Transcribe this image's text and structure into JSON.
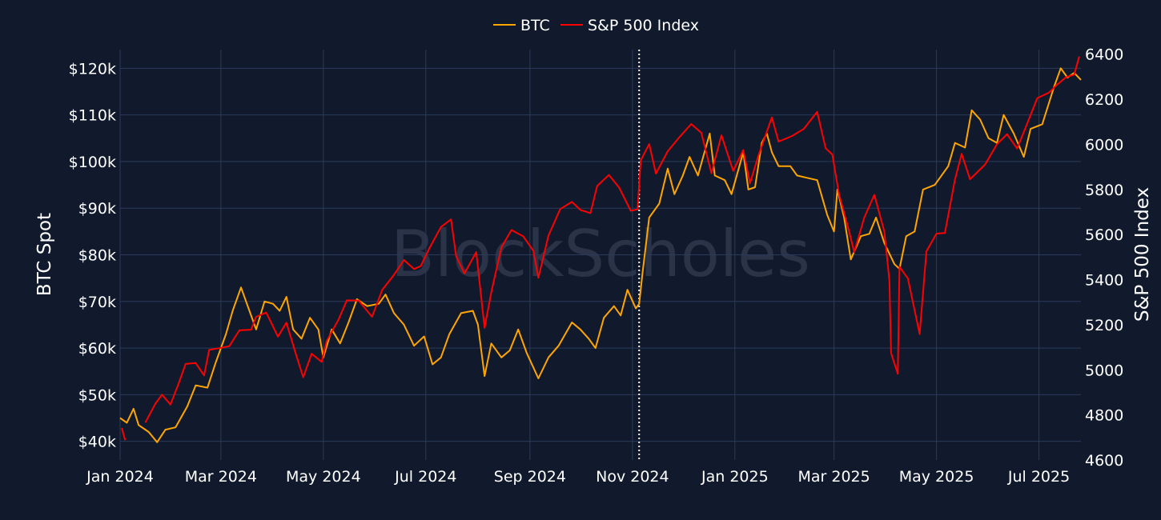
{
  "chart_data": {
    "type": "line",
    "watermark": "BlockScholes",
    "legend": {
      "placement": "top-center"
    },
    "grid": true,
    "x_axis": {
      "range": [
        "2024-01-01",
        "2025-07-26"
      ],
      "ticks": [
        {
          "date": "2024-01-01",
          "label": "Jan 2024"
        },
        {
          "date": "2024-03-01",
          "label": "Mar 2024"
        },
        {
          "date": "2024-05-01",
          "label": "May 2024"
        },
        {
          "date": "2024-07-01",
          "label": "Jul 2024"
        },
        {
          "date": "2024-09-01",
          "label": "Sep 2024"
        },
        {
          "date": "2024-11-01",
          "label": "Nov 2024"
        },
        {
          "date": "2025-01-01",
          "label": "Jan 2025"
        },
        {
          "date": "2025-03-01",
          "label": "Mar 2025"
        },
        {
          "date": "2025-05-01",
          "label": "May 2025"
        },
        {
          "date": "2025-07-01",
          "label": "Jul 2025"
        }
      ]
    },
    "y_left": {
      "title": "BTC Spot",
      "range": [
        36000,
        124000
      ],
      "ticks": [
        {
          "value": 40000,
          "label": "$40k"
        },
        {
          "value": 50000,
          "label": "$50k"
        },
        {
          "value": 60000,
          "label": "$60k"
        },
        {
          "value": 70000,
          "label": "$70k"
        },
        {
          "value": 80000,
          "label": "$80k"
        },
        {
          "value": 90000,
          "label": "$90k"
        },
        {
          "value": 100000,
          "label": "$100k"
        },
        {
          "value": 110000,
          "label": "$110k"
        },
        {
          "value": 120000,
          "label": "$120k"
        }
      ]
    },
    "y_right": {
      "title": "S&P 500 Index",
      "range": [
        4600,
        6420
      ],
      "ticks": [
        {
          "value": 4600,
          "label": "4600"
        },
        {
          "value": 4800,
          "label": "4800"
        },
        {
          "value": 5000,
          "label": "5000"
        },
        {
          "value": 5200,
          "label": "5200"
        },
        {
          "value": 5400,
          "label": "5400"
        },
        {
          "value": 5600,
          "label": "5600"
        },
        {
          "value": 5800,
          "label": "5800"
        },
        {
          "value": 6000,
          "label": "6000"
        },
        {
          "value": 6200,
          "label": "6200"
        },
        {
          "value": 6400,
          "label": "6400"
        }
      ]
    },
    "annotations": [
      {
        "type": "vertical-dotted-line",
        "date": "2024-11-05",
        "color": "#ffffff"
      }
    ],
    "series": [
      {
        "name": "BTC",
        "axis": "left",
        "color": "#ffa500",
        "points": [
          [
            "2024-01-01",
            45000
          ],
          [
            "2024-01-05",
            44000
          ],
          [
            "2024-01-09",
            47000
          ],
          [
            "2024-01-12",
            43500
          ],
          [
            "2024-01-18",
            42000
          ],
          [
            "2024-01-23",
            39800
          ],
          [
            "2024-01-28",
            42500
          ],
          [
            "2024-02-03",
            43000
          ],
          [
            "2024-02-10",
            47500
          ],
          [
            "2024-02-15",
            52000
          ],
          [
            "2024-02-22",
            51500
          ],
          [
            "2024-02-27",
            57000
          ],
          [
            "2024-03-04",
            63000
          ],
          [
            "2024-03-08",
            68000
          ],
          [
            "2024-03-13",
            73000
          ],
          [
            "2024-03-18",
            68000
          ],
          [
            "2024-03-22",
            64000
          ],
          [
            "2024-03-27",
            70000
          ],
          [
            "2024-04-01",
            69500
          ],
          [
            "2024-04-05",
            68000
          ],
          [
            "2024-04-09",
            71000
          ],
          [
            "2024-04-13",
            64000
          ],
          [
            "2024-04-18",
            62000
          ],
          [
            "2024-04-23",
            66500
          ],
          [
            "2024-04-28",
            64000
          ],
          [
            "2024-05-01",
            58000
          ],
          [
            "2024-05-06",
            64000
          ],
          [
            "2024-05-11",
            61000
          ],
          [
            "2024-05-16",
            65500
          ],
          [
            "2024-05-21",
            70500
          ],
          [
            "2024-05-27",
            69000
          ],
          [
            "2024-06-03",
            69500
          ],
          [
            "2024-06-07",
            71500
          ],
          [
            "2024-06-12",
            67500
          ],
          [
            "2024-06-18",
            65000
          ],
          [
            "2024-06-24",
            60500
          ],
          [
            "2024-06-30",
            62500
          ],
          [
            "2024-07-05",
            56500
          ],
          [
            "2024-07-10",
            58000
          ],
          [
            "2024-07-15",
            63000
          ],
          [
            "2024-07-22",
            67500
          ],
          [
            "2024-07-29",
            68000
          ],
          [
            "2024-08-01",
            65000
          ],
          [
            "2024-08-05",
            54000
          ],
          [
            "2024-08-09",
            61000
          ],
          [
            "2024-08-15",
            58000
          ],
          [
            "2024-08-20",
            59500
          ],
          [
            "2024-08-25",
            64000
          ],
          [
            "2024-08-30",
            59000
          ],
          [
            "2024-09-06",
            53500
          ],
          [
            "2024-09-12",
            58000
          ],
          [
            "2024-09-18",
            60500
          ],
          [
            "2024-09-26",
            65500
          ],
          [
            "2024-10-01",
            64000
          ],
          [
            "2024-10-06",
            62000
          ],
          [
            "2024-10-10",
            60000
          ],
          [
            "2024-10-15",
            66500
          ],
          [
            "2024-10-21",
            69000
          ],
          [
            "2024-10-25",
            67000
          ],
          [
            "2024-10-29",
            72500
          ],
          [
            "2024-11-03",
            68500
          ],
          [
            "2024-11-05",
            69500
          ],
          [
            "2024-11-07",
            76000
          ],
          [
            "2024-11-11",
            88000
          ],
          [
            "2024-11-17",
            91000
          ],
          [
            "2024-11-22",
            98500
          ],
          [
            "2024-11-26",
            93000
          ],
          [
            "2024-12-01",
            97000
          ],
          [
            "2024-12-05",
            101000
          ],
          [
            "2024-12-10",
            97000
          ],
          [
            "2024-12-17",
            106000
          ],
          [
            "2024-12-20",
            97000
          ],
          [
            "2024-12-26",
            96000
          ],
          [
            "2024-12-30",
            93000
          ],
          [
            "2025-01-06",
            102000
          ],
          [
            "2025-01-09",
            94000
          ],
          [
            "2025-01-13",
            94500
          ],
          [
            "2025-01-17",
            104000
          ],
          [
            "2025-01-20",
            106000
          ],
          [
            "2025-01-23",
            102000
          ],
          [
            "2025-01-27",
            99000
          ],
          [
            "2025-02-03",
            99000
          ],
          [
            "2025-02-07",
            97000
          ],
          [
            "2025-02-13",
            96500
          ],
          [
            "2025-02-19",
            96000
          ],
          [
            "2025-02-25",
            88500
          ],
          [
            "2025-03-01",
            85000
          ],
          [
            "2025-03-03",
            94000
          ],
          [
            "2025-03-07",
            88000
          ],
          [
            "2025-03-11",
            79000
          ],
          [
            "2025-03-17",
            84000
          ],
          [
            "2025-03-22",
            84500
          ],
          [
            "2025-03-26",
            88000
          ],
          [
            "2025-03-31",
            82500
          ],
          [
            "2025-04-06",
            78000
          ],
          [
            "2025-04-09",
            77000
          ],
          [
            "2025-04-13",
            84000
          ],
          [
            "2025-04-18",
            85000
          ],
          [
            "2025-04-23",
            94000
          ],
          [
            "2025-04-30",
            95000
          ],
          [
            "2025-05-08",
            99000
          ],
          [
            "2025-05-12",
            104000
          ],
          [
            "2025-05-18",
            103000
          ],
          [
            "2025-05-22",
            111000
          ],
          [
            "2025-05-27",
            109000
          ],
          [
            "2025-06-01",
            105000
          ],
          [
            "2025-06-06",
            104000
          ],
          [
            "2025-06-10",
            110000
          ],
          [
            "2025-06-16",
            106000
          ],
          [
            "2025-06-22",
            101000
          ],
          [
            "2025-06-26",
            107000
          ],
          [
            "2025-07-03",
            108000
          ],
          [
            "2025-07-10",
            116000
          ],
          [
            "2025-07-14",
            120000
          ],
          [
            "2025-07-18",
            118000
          ],
          [
            "2025-07-22",
            119000
          ],
          [
            "2025-07-26",
            117500
          ]
        ]
      },
      {
        "name": "S&P 500 Index",
        "axis": "right",
        "color": "#ff0000",
        "points": [
          [
            "2024-01-02",
            4742
          ],
          [
            "2024-01-04",
            4688
          ],
          [
            "2024-01-08",
            null
          ],
          [
            "2024-01-16",
            4766
          ],
          [
            "2024-01-22",
            4850
          ],
          [
            "2024-01-26",
            4890
          ],
          [
            "2024-01-31",
            4846
          ],
          [
            "2024-02-05",
            4942
          ],
          [
            "2024-02-09",
            5026
          ],
          [
            "2024-02-15",
            5030
          ],
          [
            "2024-02-20",
            4975
          ],
          [
            "2024-02-23",
            5088
          ],
          [
            "2024-02-29",
            5096
          ],
          [
            "2024-03-06",
            5105
          ],
          [
            "2024-03-12",
            5175
          ],
          [
            "2024-03-19",
            5178
          ],
          [
            "2024-03-22",
            5235
          ],
          [
            "2024-03-28",
            5254
          ],
          [
            "2024-04-04",
            5147
          ],
          [
            "2024-04-09",
            5209
          ],
          [
            "2024-04-15",
            5061
          ],
          [
            "2024-04-19",
            4967
          ],
          [
            "2024-04-24",
            5071
          ],
          [
            "2024-04-30",
            5035
          ],
          [
            "2024-05-03",
            5128
          ],
          [
            "2024-05-10",
            5222
          ],
          [
            "2024-05-15",
            5308
          ],
          [
            "2024-05-22",
            5307
          ],
          [
            "2024-05-30",
            5235
          ],
          [
            "2024-06-05",
            5354
          ],
          [
            "2024-06-12",
            5421
          ],
          [
            "2024-06-18",
            5487
          ],
          [
            "2024-06-24",
            5447
          ],
          [
            "2024-06-28",
            5460
          ],
          [
            "2024-07-03",
            5537
          ],
          [
            "2024-07-10",
            5633
          ],
          [
            "2024-07-16",
            5667
          ],
          [
            "2024-07-19",
            5505
          ],
          [
            "2024-07-24",
            5427
          ],
          [
            "2024-07-31",
            5522
          ],
          [
            "2024-08-05",
            5186
          ],
          [
            "2024-08-09",
            5344
          ],
          [
            "2024-08-15",
            5543
          ],
          [
            "2024-08-21",
            5620
          ],
          [
            "2024-08-28",
            5592
          ],
          [
            "2024-09-03",
            5528
          ],
          [
            "2024-09-06",
            5408
          ],
          [
            "2024-09-12",
            5595
          ],
          [
            "2024-09-19",
            5713
          ],
          [
            "2024-09-26",
            5745
          ],
          [
            "2024-10-01",
            5709
          ],
          [
            "2024-10-07",
            5695
          ],
          [
            "2024-10-11",
            5815
          ],
          [
            "2024-10-18",
            5864
          ],
          [
            "2024-10-24",
            5809
          ],
          [
            "2024-10-31",
            5705
          ],
          [
            "2024-11-04",
            5712
          ],
          [
            "2024-11-06",
            5929
          ],
          [
            "2024-11-11",
            6001
          ],
          [
            "2024-11-15",
            5870
          ],
          [
            "2024-11-22",
            5969
          ],
          [
            "2024-11-29",
            6032
          ],
          [
            "2024-12-06",
            6090
          ],
          [
            "2024-12-12",
            6051
          ],
          [
            "2024-12-18",
            5872
          ],
          [
            "2024-12-24",
            6040
          ],
          [
            "2024-12-31",
            5882
          ],
          [
            "2025-01-06",
            5975
          ],
          [
            "2025-01-10",
            5827
          ],
          [
            "2025-01-15",
            5950
          ],
          [
            "2025-01-23",
            6119
          ],
          [
            "2025-01-27",
            6012
          ],
          [
            "2025-02-04",
            6037
          ],
          [
            "2025-02-11",
            6068
          ],
          [
            "2025-02-19",
            6144
          ],
          [
            "2025-02-24",
            5983
          ],
          [
            "2025-02-28",
            5955
          ],
          [
            "2025-03-04",
            5778
          ],
          [
            "2025-03-10",
            5614
          ],
          [
            "2025-03-13",
            5522
          ],
          [
            "2025-03-19",
            5675
          ],
          [
            "2025-03-25",
            5776
          ],
          [
            "2025-03-31",
            5612
          ],
          [
            "2025-04-03",
            5396
          ],
          [
            "2025-04-04",
            5074
          ],
          [
            "2025-04-08",
            4982
          ],
          [
            "2025-04-09",
            5457
          ],
          [
            "2025-04-14",
            5405
          ],
          [
            "2025-04-21",
            5158
          ],
          [
            "2025-04-25",
            5525
          ],
          [
            "2025-05-01",
            5604
          ],
          [
            "2025-05-06",
            5607
          ],
          [
            "2025-05-12",
            5844
          ],
          [
            "2025-05-16",
            5958
          ],
          [
            "2025-05-21",
            5845
          ],
          [
            "2025-05-30",
            5911
          ],
          [
            "2025-06-06",
            6000
          ],
          [
            "2025-06-12",
            6045
          ],
          [
            "2025-06-18",
            5981
          ],
          [
            "2025-06-24",
            6092
          ],
          [
            "2025-06-30",
            6205
          ],
          [
            "2025-07-07",
            6229
          ],
          [
            "2025-07-11",
            6259
          ],
          [
            "2025-07-17",
            6297
          ],
          [
            "2025-07-22",
            6309
          ],
          [
            "2025-07-25",
            6389
          ]
        ]
      }
    ]
  }
}
